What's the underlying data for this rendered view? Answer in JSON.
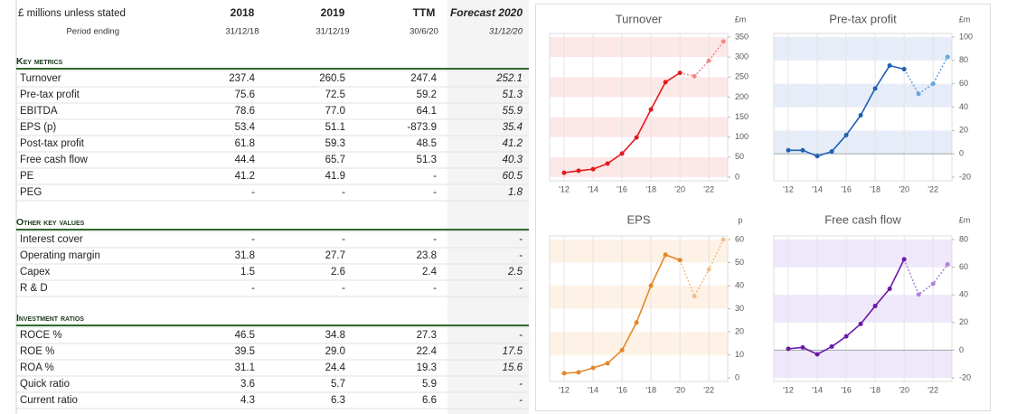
{
  "table": {
    "header": [
      "£ millions unless stated",
      "2018",
      "2019",
      "TTM",
      "Forecast 2020"
    ],
    "subheader": [
      "Period ending",
      "31/12/18",
      "31/12/19",
      "30/6/20",
      "31/12/20"
    ],
    "sections": [
      {
        "title": "Key metrics",
        "rows": [
          [
            "Turnover",
            "237.4",
            "260.5",
            "247.4",
            "252.1"
          ],
          [
            "Pre-tax profit",
            "75.6",
            "72.5",
            "59.2",
            "51.3"
          ],
          [
            "EBITDA",
            "78.6",
            "77.0",
            "64.1",
            "55.9"
          ],
          [
            "EPS (p)",
            "53.4",
            "51.1",
            "-873.9",
            "35.4"
          ],
          [
            "Post-tax profit",
            "61.8",
            "59.3",
            "48.5",
            "41.2"
          ],
          [
            "Free cash flow",
            "44.4",
            "65.7",
            "51.3",
            "40.3"
          ],
          [
            "PE",
            "41.2",
            "41.9",
            "-",
            "60.5"
          ],
          [
            "PEG",
            "-",
            "-",
            "-",
            "1.8"
          ]
        ]
      },
      {
        "title": "Other key values",
        "rows": [
          [
            "Interest cover",
            "-",
            "-",
            "-",
            "-"
          ],
          [
            "Operating margin",
            "31.8",
            "27.7",
            "23.8",
            "-"
          ],
          [
            "Capex",
            "1.5",
            "2.6",
            "2.4",
            "2.5"
          ],
          [
            "R & D",
            "-",
            "-",
            "-",
            "-"
          ]
        ]
      },
      {
        "title": "Investment ratios",
        "rows": [
          [
            "ROCE %",
            "46.5",
            "34.8",
            "27.3",
            "-"
          ],
          [
            "ROE %",
            "39.5",
            "29.0",
            "22.4",
            "17.5"
          ],
          [
            "ROA %",
            "31.1",
            "24.4",
            "19.3",
            "15.6"
          ],
          [
            "Quick ratio",
            "3.6",
            "5.7",
            "5.9",
            "-"
          ],
          [
            "Current ratio",
            "4.3",
            "6.3",
            "6.6",
            "-"
          ]
        ]
      }
    ]
  },
  "chart_data": [
    {
      "type": "line",
      "title": "Turnover",
      "unit": "£m",
      "x": [
        12,
        13,
        14,
        15,
        16,
        17,
        18,
        19,
        20,
        21,
        22,
        23
      ],
      "values": [
        11,
        16,
        20,
        34,
        59,
        99,
        169,
        237.4,
        260.5,
        252.1,
        291,
        339
      ],
      "xlim": [
        11,
        23.3
      ],
      "xticks": [
        {
          "value": 12,
          "label": "'12"
        },
        {
          "value": 14,
          "label": "'14"
        },
        {
          "value": 16,
          "label": "'16"
        },
        {
          "value": 18,
          "label": "'18"
        },
        {
          "value": 20,
          "label": "'20"
        },
        {
          "value": 22,
          "label": "'22"
        }
      ],
      "ylim": [
        0,
        350
      ],
      "yticks": [
        0,
        50,
        100,
        150,
        200,
        250,
        300,
        350
      ],
      "color": "#e3191e",
      "forecast_color": "#f38a8a",
      "band_color": "#fde8e8",
      "forecast_from": 21
    },
    {
      "type": "line",
      "title": "Pre-tax profit",
      "unit": "£m",
      "x": [
        12,
        13,
        14,
        15,
        16,
        17,
        18,
        19,
        20,
        21,
        22,
        23
      ],
      "values": [
        3,
        3,
        -2,
        2,
        16,
        33,
        56,
        75.6,
        72.5,
        51.3,
        60,
        83
      ],
      "xlim": [
        11,
        23.3
      ],
      "xticks": [
        {
          "value": 12,
          "label": "'12"
        },
        {
          "value": 14,
          "label": "'14"
        },
        {
          "value": 16,
          "label": "'16"
        },
        {
          "value": 18,
          "label": "'18"
        },
        {
          "value": 20,
          "label": "'20"
        },
        {
          "value": 22,
          "label": "'22"
        }
      ],
      "ylim": [
        -20,
        100
      ],
      "yticks": [
        -20,
        0,
        20,
        40,
        60,
        80,
        100
      ],
      "color": "#1f5fb4",
      "forecast_color": "#6aa6df",
      "band_color": "#e6edf8",
      "forecast_from": 21
    },
    {
      "type": "line",
      "title": "EPS",
      "unit": "p",
      "x": [
        12,
        13,
        14,
        15,
        16,
        17,
        18,
        19,
        20,
        21,
        22,
        23
      ],
      "values": [
        2,
        2.4,
        4.3,
        6.3,
        12,
        24,
        40,
        53.4,
        51.1,
        35.4,
        47,
        60
      ],
      "xlim": [
        11,
        23.3
      ],
      "xticks": [
        {
          "value": 12,
          "label": "'12"
        },
        {
          "value": 14,
          "label": "'14"
        },
        {
          "value": 16,
          "label": "'16"
        },
        {
          "value": 18,
          "label": "'18"
        },
        {
          "value": 20,
          "label": "'20"
        },
        {
          "value": 22,
          "label": "'22"
        }
      ],
      "ylim": [
        0,
        60
      ],
      "yticks": [
        0,
        10,
        20,
        30,
        40,
        50,
        60
      ],
      "color": "#e3872a",
      "forecast_color": "#f4bf88",
      "band_color": "#fdf2e5",
      "forecast_from": 21
    },
    {
      "type": "line",
      "title": "Free cash flow",
      "unit": "£m",
      "x": [
        12,
        13,
        14,
        15,
        16,
        17,
        18,
        19,
        20,
        21,
        22,
        23
      ],
      "values": [
        1,
        2,
        -3,
        2.6,
        10,
        19,
        32,
        44.4,
        65.7,
        40.3,
        48,
        62
      ],
      "xlim": [
        11,
        23.3
      ],
      "xticks": [
        {
          "value": 12,
          "label": "'12"
        },
        {
          "value": 14,
          "label": "'14"
        },
        {
          "value": 16,
          "label": "'16"
        },
        {
          "value": 18,
          "label": "'18"
        },
        {
          "value": 20,
          "label": "'20"
        },
        {
          "value": 22,
          "label": "'22"
        }
      ],
      "ylim": [
        -20,
        80
      ],
      "yticks": [
        -20,
        0,
        20,
        40,
        60,
        80
      ],
      "color": "#6a1aa6",
      "forecast_color": "#ae86d8",
      "band_color": "#efe8fa",
      "forecast_from": 21
    }
  ]
}
